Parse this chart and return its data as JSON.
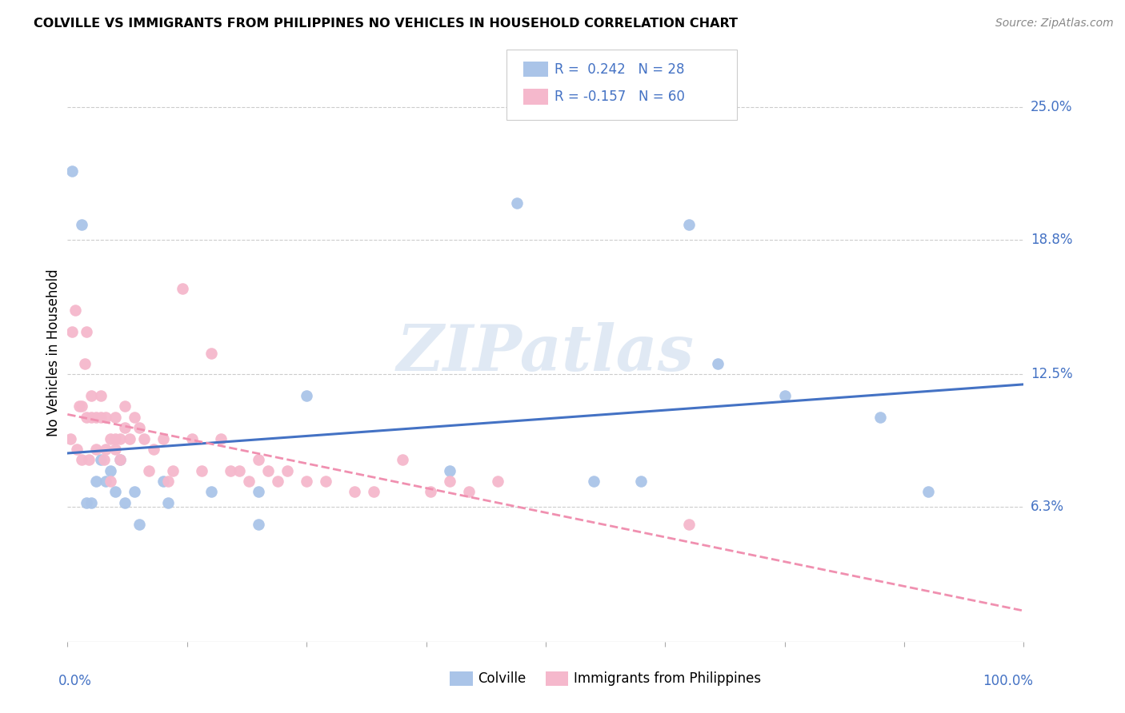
{
  "title": "COLVILLE VS IMMIGRANTS FROM PHILIPPINES NO VEHICLES IN HOUSEHOLD CORRELATION CHART",
  "source": "Source: ZipAtlas.com",
  "ylabel": "No Vehicles in Household",
  "ytick_labels": [
    "6.3%",
    "12.5%",
    "18.8%",
    "25.0%"
  ],
  "ytick_values": [
    6.3,
    12.5,
    18.8,
    25.0
  ],
  "colville_color": "#aac4e8",
  "philippines_color": "#f5b8cc",
  "colville_line_color": "#4472c4",
  "philippines_line_color": "#f090b0",
  "watermark_text": "ZIPatlas",
  "colville_R": "0.242",
  "colville_N": "28",
  "philippines_R": "-0.157",
  "philippines_N": "60",
  "xmin": 0,
  "xmax": 100,
  "ymin": 0,
  "ymax": 27,
  "colville_x": [
    0.5,
    1.5,
    2.0,
    2.5,
    3.0,
    3.5,
    4.0,
    4.5,
    5.0,
    5.5,
    6.0,
    7.0,
    7.5,
    10.0,
    10.5,
    15.0,
    20.0,
    20.0,
    25.0,
    40.0,
    47.0,
    55.0,
    60.0,
    65.0,
    68.0,
    75.0,
    85.0,
    90.0
  ],
  "colville_y": [
    22.0,
    19.5,
    6.5,
    6.5,
    7.5,
    8.5,
    7.5,
    8.0,
    7.0,
    8.5,
    6.5,
    7.0,
    5.5,
    7.5,
    6.5,
    7.0,
    5.5,
    7.0,
    11.5,
    8.0,
    20.5,
    7.5,
    7.5,
    19.5,
    13.0,
    11.5,
    10.5,
    7.0
  ],
  "philippines_x": [
    0.3,
    0.5,
    0.8,
    1.0,
    1.2,
    1.5,
    1.5,
    1.8,
    2.0,
    2.0,
    2.2,
    2.5,
    2.5,
    3.0,
    3.0,
    3.5,
    3.5,
    3.8,
    4.0,
    4.0,
    4.5,
    4.5,
    5.0,
    5.0,
    5.0,
    5.5,
    5.5,
    6.0,
    6.0,
    6.5,
    7.0,
    7.5,
    8.0,
    8.5,
    9.0,
    10.0,
    10.5,
    11.0,
    12.0,
    13.0,
    14.0,
    15.0,
    16.0,
    17.0,
    18.0,
    19.0,
    20.0,
    21.0,
    22.0,
    23.0,
    25.0,
    27.0,
    30.0,
    32.0,
    35.0,
    38.0,
    40.0,
    42.0,
    45.0,
    65.0
  ],
  "philippines_y": [
    9.5,
    14.5,
    15.5,
    9.0,
    11.0,
    11.0,
    8.5,
    13.0,
    14.5,
    10.5,
    8.5,
    11.5,
    10.5,
    10.5,
    9.0,
    10.5,
    11.5,
    8.5,
    10.5,
    9.0,
    9.5,
    7.5,
    9.5,
    10.5,
    9.0,
    9.5,
    8.5,
    10.0,
    11.0,
    9.5,
    10.5,
    10.0,
    9.5,
    8.0,
    9.0,
    9.5,
    7.5,
    8.0,
    16.5,
    9.5,
    8.0,
    13.5,
    9.5,
    8.0,
    8.0,
    7.5,
    8.5,
    8.0,
    7.5,
    8.0,
    7.5,
    7.5,
    7.0,
    7.0,
    8.5,
    7.0,
    7.5,
    7.0,
    7.5,
    5.5
  ]
}
